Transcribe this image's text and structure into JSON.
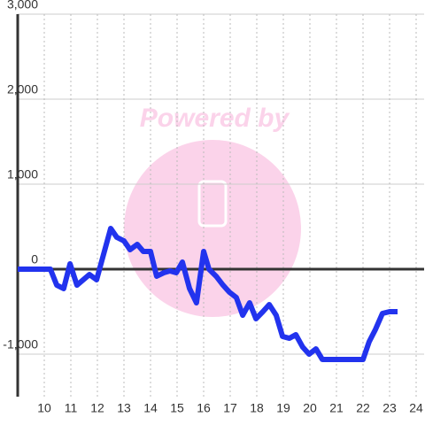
{
  "chart_data": {
    "type": "line",
    "watermark": "Powered by",
    "x": [
      9.0,
      10.23,
      10.47,
      10.73,
      10.97,
      11.23,
      11.7,
      11.97,
      12.5,
      12.73,
      13.0,
      13.23,
      13.5,
      13.73,
      14.0,
      14.23,
      14.5,
      14.73,
      14.97,
      15.2,
      15.47,
      15.73,
      16.0,
      16.2,
      16.47,
      16.73,
      16.97,
      17.23,
      17.47,
      17.73,
      17.97,
      18.23,
      18.47,
      18.73,
      18.97,
      19.23,
      19.47,
      19.73,
      19.97,
      20.23,
      20.47,
      22.0,
      22.23,
      22.47,
      22.73,
      23.0,
      23.3
    ],
    "series": [
      {
        "color": "#2233ee",
        "values": [
          0,
          0,
          -188,
          -229,
          63,
          -188,
          -63,
          -125,
          479,
          375,
          333,
          229,
          292,
          208,
          208,
          -83,
          -42,
          -21,
          -42,
          83,
          -229,
          -396,
          208,
          0,
          -83,
          -188,
          -271,
          -333,
          -542,
          -396,
          -583,
          -500,
          -417,
          -542,
          -792,
          -813,
          -771,
          -917,
          -1000,
          -938,
          -1063,
          -1063,
          -854,
          -708,
          -521,
          -500,
          -500
        ]
      }
    ],
    "xlim": [
      9,
      24.3
    ],
    "xticks": [
      10,
      11,
      12,
      13,
      14,
      15,
      16,
      17,
      18,
      19,
      20,
      21,
      22,
      23,
      24
    ],
    "ylim": [
      -1500,
      3000
    ],
    "yticks": [
      {
        "value": -1000,
        "label": "-1,000"
      },
      0,
      {
        "value": 1000,
        "label": "1,000"
      },
      {
        "value": 2000,
        "label": "2,000"
      },
      {
        "value": 3000,
        "label": "3,000"
      }
    ],
    "grid": true
  }
}
